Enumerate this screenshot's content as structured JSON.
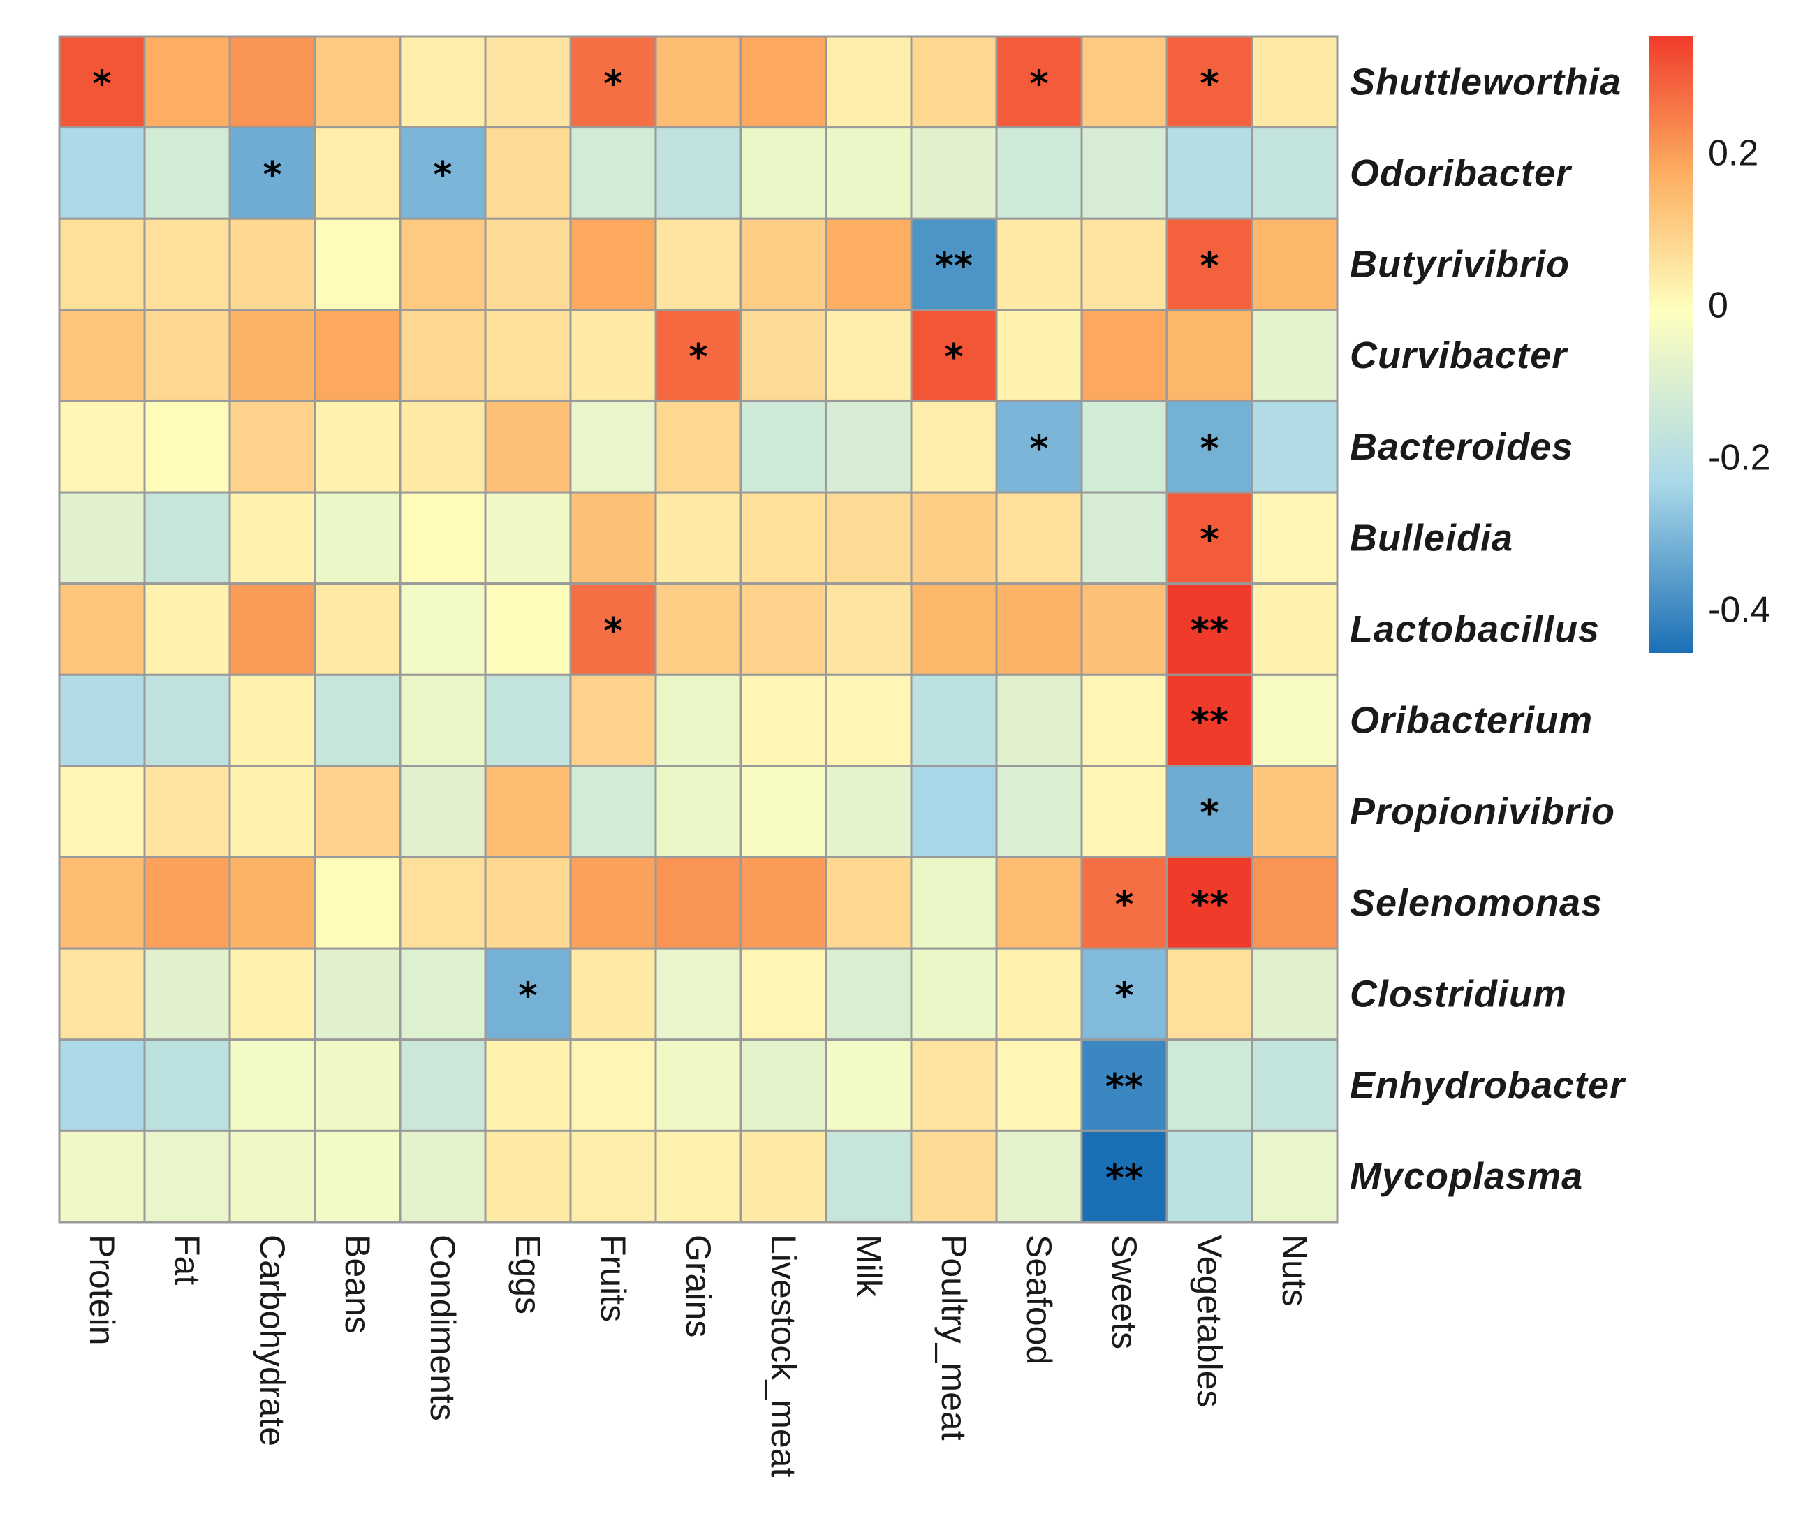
{
  "chart_data": {
    "type": "heatmap",
    "title": "",
    "rows": [
      "Shuttleworthia",
      "Odoribacter",
      "Butyrivibrio",
      "Curvibacter",
      "Bacteroides",
      "Bulleidia",
      "Lactobacillus",
      "Oribacterium",
      "Propionivibrio",
      "Selenomonas",
      "Clostridium",
      "Enhydrobacter",
      "Mycoplasma"
    ],
    "columns": [
      "Protein",
      "Fat",
      "Carbohydrate",
      "Beans",
      "Condiments",
      "Eggs",
      "Fruits",
      "Grains",
      "Livestock_meat",
      "Milk",
      "Poultry_meat",
      "Seafood",
      "Sweets",
      "Vegetables",
      "Nuts"
    ],
    "values": [
      [
        0.32,
        0.18,
        0.22,
        0.12,
        0.04,
        0.06,
        0.28,
        0.15,
        0.19,
        0.04,
        0.09,
        0.31,
        0.12,
        0.3,
        0.05
      ],
      [
        -0.22,
        -0.12,
        -0.32,
        0.04,
        -0.3,
        0.08,
        -0.12,
        -0.17,
        -0.05,
        -0.05,
        -0.08,
        -0.13,
        -0.11,
        -0.2,
        -0.16
      ],
      [
        0.07,
        0.07,
        0.09,
        0.01,
        0.12,
        0.08,
        0.19,
        0.06,
        0.11,
        0.18,
        -0.37,
        0.05,
        0.06,
        0.3,
        0.16
      ],
      [
        0.13,
        0.09,
        0.17,
        0.19,
        0.09,
        0.07,
        0.05,
        0.29,
        0.08,
        0.04,
        0.32,
        0.03,
        0.19,
        0.16,
        -0.07
      ],
      [
        0.02,
        0.01,
        0.1,
        0.03,
        0.05,
        0.14,
        -0.06,
        0.09,
        -0.13,
        -0.11,
        0.04,
        -0.3,
        -0.12,
        -0.31,
        -0.21
      ],
      [
        -0.08,
        -0.15,
        0.03,
        -0.05,
        0.01,
        -0.04,
        0.14,
        0.05,
        0.07,
        0.08,
        0.11,
        0.07,
        -0.11,
        0.31,
        0.02
      ],
      [
        0.13,
        0.03,
        0.21,
        0.05,
        -0.03,
        0.01,
        0.28,
        0.11,
        0.1,
        0.06,
        0.16,
        0.17,
        0.14,
        0.36,
        0.03
      ],
      [
        -0.21,
        -0.17,
        0.03,
        -0.15,
        -0.05,
        -0.16,
        0.1,
        -0.05,
        0.02,
        0.02,
        -0.18,
        -0.08,
        0.02,
        0.36,
        -0.02
      ],
      [
        0.02,
        0.06,
        0.03,
        0.1,
        -0.08,
        0.15,
        -0.12,
        -0.05,
        -0.02,
        -0.07,
        -0.23,
        -0.1,
        0.02,
        -0.32,
        0.13
      ],
      [
        0.15,
        0.2,
        0.17,
        0.01,
        0.07,
        0.09,
        0.2,
        0.22,
        0.21,
        0.09,
        -0.05,
        0.15,
        0.28,
        0.36,
        0.22
      ],
      [
        0.06,
        -0.08,
        0.03,
        -0.08,
        -0.09,
        -0.31,
        0.05,
        -0.06,
        0.02,
        -0.1,
        -0.05,
        0.03,
        -0.29,
        0.07,
        -0.08
      ],
      [
        -0.22,
        -0.18,
        -0.03,
        -0.04,
        -0.14,
        0.03,
        0.02,
        -0.04,
        -0.07,
        -0.03,
        0.06,
        0.02,
        -0.4,
        -0.13,
        -0.16
      ],
      [
        -0.04,
        -0.06,
        -0.04,
        -0.03,
        -0.07,
        0.05,
        0.04,
        0.03,
        0.05,
        -0.15,
        0.08,
        -0.07,
        -0.45,
        -0.18,
        -0.06
      ]
    ],
    "significance": [
      [
        "*",
        "",
        "",
        "",
        "",
        "",
        "*",
        "",
        "",
        "",
        "",
        "*",
        "",
        "*",
        ""
      ],
      [
        "",
        "",
        "*",
        "",
        "*",
        "",
        "",
        "",
        "",
        "",
        "",
        "",
        "",
        "",
        ""
      ],
      [
        "",
        "",
        "",
        "",
        "",
        "",
        "",
        "",
        "",
        "",
        "**",
        "",
        "",
        "*",
        ""
      ],
      [
        "",
        "",
        "",
        "",
        "",
        "",
        "",
        "*",
        "",
        "",
        "*",
        "",
        "",
        "",
        ""
      ],
      [
        "",
        "",
        "",
        "",
        "",
        "",
        "",
        "",
        "",
        "",
        "",
        "*",
        "",
        "*",
        ""
      ],
      [
        "",
        "",
        "",
        "",
        "",
        "",
        "",
        "",
        "",
        "",
        "",
        "",
        "",
        "*",
        ""
      ],
      [
        "",
        "",
        "",
        "",
        "",
        "",
        "*",
        "",
        "",
        "",
        "",
        "",
        "",
        "**",
        ""
      ],
      [
        "",
        "",
        "",
        "",
        "",
        "",
        "",
        "",
        "",
        "",
        "",
        "",
        "",
        "**",
        ""
      ],
      [
        "",
        "",
        "",
        "",
        "",
        "",
        "",
        "",
        "",
        "",
        "",
        "",
        "",
        "*",
        ""
      ],
      [
        "",
        "",
        "",
        "",
        "",
        "",
        "",
        "",
        "",
        "",
        "",
        "",
        "*",
        "**",
        ""
      ],
      [
        "",
        "",
        "",
        "",
        "",
        "*",
        "",
        "",
        "",
        "",
        "",
        "",
        "*",
        "",
        ""
      ],
      [
        "",
        "",
        "",
        "",
        "",
        "",
        "",
        "",
        "",
        "",
        "",
        "",
        "**",
        "",
        ""
      ],
      [
        "",
        "",
        "",
        "",
        "",
        "",
        "",
        "",
        "",
        "",
        "",
        "",
        "**",
        "",
        ""
      ]
    ],
    "colorbar": {
      "min": -0.45,
      "max": 0.36,
      "ticks": [
        0.2,
        0,
        -0.2,
        -0.4
      ],
      "tick_labels": [
        "0.2",
        "0",
        "-0.2",
        "-0.4"
      ]
    },
    "colors": {
      "high": "#f03b2b",
      "mid_high": "#fdae61",
      "mid": "#ffffbf",
      "mid_low": "#abd9e9",
      "low": "#1b6fb5",
      "grid": "#9a9a9a"
    }
  }
}
